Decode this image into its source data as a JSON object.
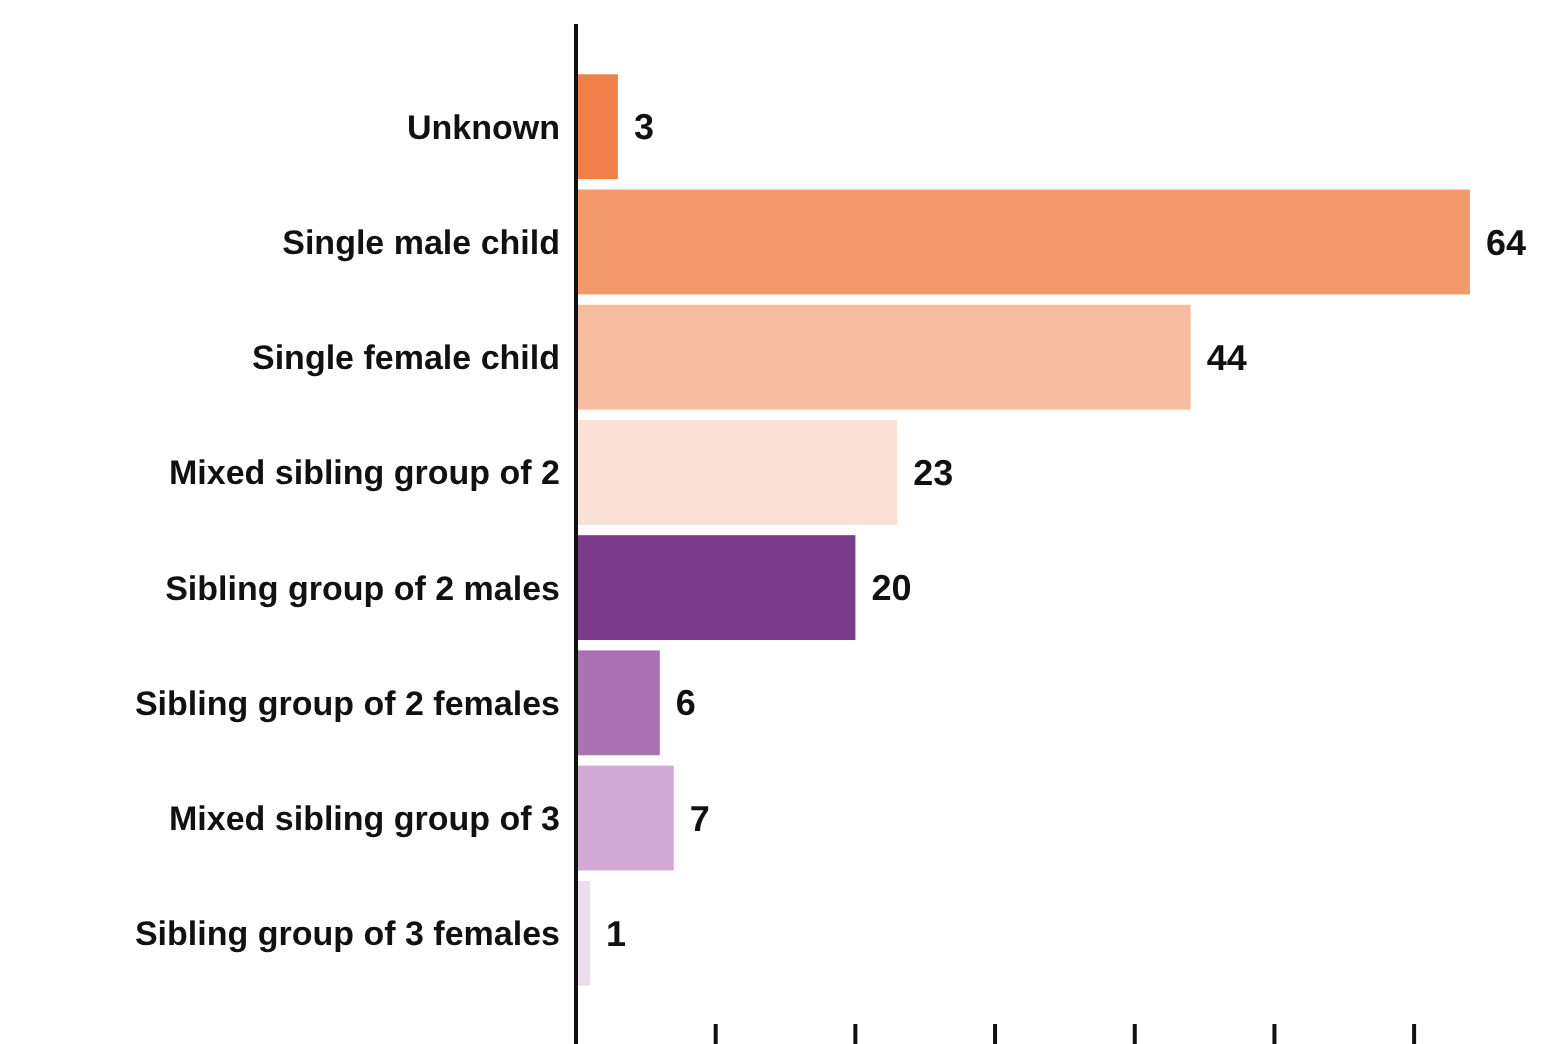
{
  "chart_data": {
    "type": "bar",
    "orientation": "horizontal",
    "categories": [
      "Unknown",
      "Single male child",
      "Single female child",
      "Mixed sibling group of 2",
      "Sibling group of 2 males",
      "Sibling group of 2 females",
      "Mixed sibling group of 3",
      "Sibling group of 3 females"
    ],
    "values": [
      3,
      64,
      44,
      23,
      20,
      6,
      7,
      1
    ],
    "colors": [
      "#f07f4a",
      "#f4996a",
      "#f7bba0",
      "#fbe1d6",
      "#7e3b8d",
      "#a972b0",
      "#d0a9d5",
      "#ecddef"
    ],
    "xticks": [
      {
        "value": 0,
        "label": null
      },
      {
        "value": 10,
        "label": null
      },
      {
        "value": 20,
        "label": null
      },
      {
        "value": 30,
        "label": null
      },
      {
        "value": 40,
        "label": null
      },
      {
        "value": 50,
        "label": null
      },
      {
        "value": 60,
        "label": null
      }
    ],
    "tick_labels": "y",
    "data_labels": true
  }
}
